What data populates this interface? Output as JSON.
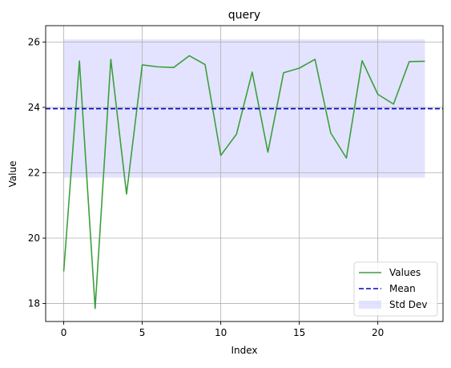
{
  "chart_data": {
    "type": "line",
    "title": "query",
    "xlabel": "Index",
    "ylabel": "Value",
    "xlim": [
      -1.15,
      24.15
    ],
    "ylim": [
      17.45,
      26.5
    ],
    "x_ticks": [
      0,
      5,
      10,
      15,
      20
    ],
    "y_ticks": [
      18,
      20,
      22,
      24,
      26
    ],
    "grid": true,
    "legend_position": "lower-right",
    "x": [
      0,
      1,
      2,
      3,
      4,
      5,
      6,
      7,
      8,
      9,
      10,
      11,
      12,
      13,
      14,
      15,
      16,
      17,
      18,
      19,
      20,
      21,
      22,
      23
    ],
    "series": [
      {
        "name": "Values",
        "kind": "line",
        "color": "#3c9f3c",
        "values": [
          18.98,
          25.42,
          17.85,
          25.47,
          21.35,
          25.3,
          25.24,
          25.22,
          25.58,
          25.31,
          22.53,
          23.18,
          25.08,
          22.63,
          25.06,
          25.2,
          25.47,
          23.22,
          22.45,
          25.43,
          24.4,
          24.1,
          25.4,
          25.41
        ]
      },
      {
        "name": "Mean",
        "kind": "hline",
        "color": "#0000cc",
        "value": 23.96
      },
      {
        "name": "Std Dev",
        "kind": "band",
        "color": "#ccccff",
        "lower": 21.85,
        "upper": 26.08,
        "x_range": [
          0,
          23
        ]
      }
    ]
  }
}
